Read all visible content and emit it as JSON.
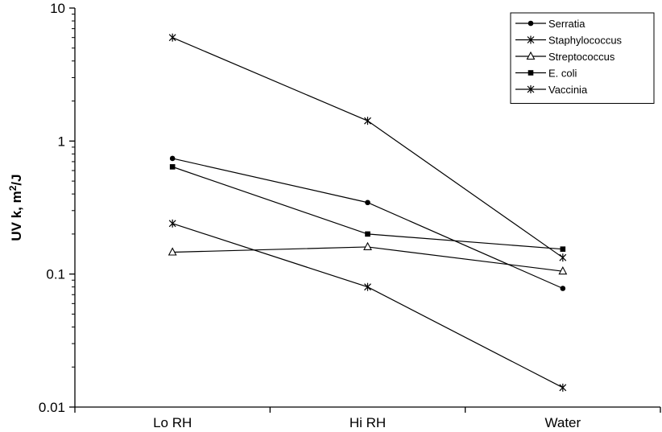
{
  "chart_data": {
    "type": "line",
    "title": "",
    "xlabel": "",
    "ylabel": "UV k, m²/J",
    "ylabel_parts": {
      "base": "UV k, m",
      "sup": "2",
      "tail": "/J"
    },
    "y_scale": "log",
    "ylim": [
      0.01,
      10
    ],
    "y_ticks": [
      {
        "value": 0.01,
        "label": "0.01"
      },
      {
        "value": 0.1,
        "label": "0.1"
      },
      {
        "value": 1,
        "label": "1"
      },
      {
        "value": 10,
        "label": "10"
      }
    ],
    "categories": [
      "Lo RH",
      "Hi RH",
      "Water"
    ],
    "grid": false,
    "legend_position": "top-right",
    "series": [
      {
        "name": "Serratia",
        "marker": "circle",
        "values": [
          0.74,
          0.345,
          0.078
        ]
      },
      {
        "name": "Staphylococcus",
        "marker": "asterisk",
        "values": [
          0.24,
          0.08,
          0.014
        ]
      },
      {
        "name": "Streptococcus",
        "marker": "triangle",
        "values": [
          0.146,
          0.16,
          0.105
        ]
      },
      {
        "name": "E. coli",
        "marker": "square",
        "values": [
          0.64,
          0.2,
          0.154
        ]
      },
      {
        "name": "Vaccinia",
        "marker": "asterisk",
        "values": [
          6.0,
          1.42,
          0.133
        ]
      }
    ],
    "colors": {
      "line": "#000000",
      "background": "#ffffff"
    }
  }
}
